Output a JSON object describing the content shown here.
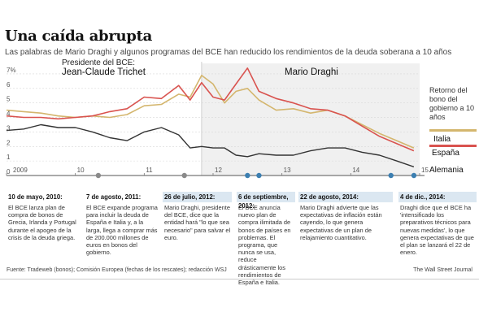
{
  "title": "Una caída abrupta",
  "subtitle": "Las palabras de Mario Draghi y algunos programas del BCE han reducido los rendimientos de la deuda soberana a 10 años",
  "presidents": {
    "label": "Presidente del BCE:",
    "trichet": "Jean-Claude Trichet",
    "draghi": "Mario Draghi"
  },
  "right_label": "Retorno del bono del gobierno a 10 años",
  "colors": {
    "italia": "#d4b66e",
    "espana": "#d9534f",
    "alemania": "#333333",
    "draghi_shade": "#f0f0f0",
    "accent_blue": "#3c7fb1",
    "marker_gray": "#8a8a8a"
  },
  "chart_data": {
    "type": "line",
    "ylim": [
      0,
      7.5
    ],
    "y_ticks": [
      "0",
      "1",
      "2",
      "3",
      "4",
      "5",
      "6",
      "7%"
    ],
    "x_ticks": [
      "2009",
      "10",
      "11",
      "12",
      "13",
      "14",
      "15"
    ],
    "x_range": [
      "2009-01",
      "2015-01"
    ],
    "draghi_start": "2011-11",
    "series": [
      {
        "name": "Italia",
        "x": [
          "2009-01",
          "2009-04",
          "2009-07",
          "2009-10",
          "2010-01",
          "2010-04",
          "2010-07",
          "2010-10",
          "2011-01",
          "2011-04",
          "2011-07",
          "2011-09",
          "2011-11",
          "2012-01",
          "2012-03",
          "2012-05",
          "2012-07",
          "2012-09",
          "2012-12",
          "2013-03",
          "2013-06",
          "2013-09",
          "2013-12",
          "2014-03",
          "2014-06",
          "2014-09",
          "2014-12"
        ],
        "values": [
          4.5,
          4.4,
          4.3,
          4.1,
          4.0,
          4.1,
          4.0,
          4.2,
          4.8,
          4.9,
          5.6,
          5.4,
          6.9,
          6.3,
          5.0,
          5.8,
          6.0,
          5.2,
          4.5,
          4.6,
          4.3,
          4.5,
          4.1,
          3.5,
          2.9,
          2.4,
          1.9
        ]
      },
      {
        "name": "España",
        "x": [
          "2009-01",
          "2009-04",
          "2009-07",
          "2009-10",
          "2010-01",
          "2010-04",
          "2010-07",
          "2010-10",
          "2011-01",
          "2011-04",
          "2011-07",
          "2011-09",
          "2011-11",
          "2012-01",
          "2012-03",
          "2012-05",
          "2012-07",
          "2012-09",
          "2012-12",
          "2013-03",
          "2013-06",
          "2013-09",
          "2013-12",
          "2014-03",
          "2014-06",
          "2014-09",
          "2014-12"
        ],
        "values": [
          4.1,
          4.0,
          4.0,
          3.9,
          4.0,
          4.1,
          4.4,
          4.6,
          5.4,
          5.3,
          6.2,
          5.2,
          6.4,
          5.4,
          5.2,
          6.3,
          7.4,
          5.8,
          5.3,
          5.0,
          4.6,
          4.5,
          4.1,
          3.4,
          2.7,
          2.2,
          1.7
        ]
      },
      {
        "name": "Alemania",
        "x": [
          "2009-01",
          "2009-04",
          "2009-07",
          "2009-10",
          "2010-01",
          "2010-04",
          "2010-07",
          "2010-10",
          "2011-01",
          "2011-04",
          "2011-07",
          "2011-09",
          "2011-11",
          "2012-01",
          "2012-03",
          "2012-05",
          "2012-07",
          "2012-09",
          "2012-12",
          "2013-03",
          "2013-06",
          "2013-09",
          "2013-12",
          "2014-03",
          "2014-06",
          "2014-09",
          "2014-12"
        ],
        "values": [
          3.1,
          3.2,
          3.5,
          3.3,
          3.3,
          3.0,
          2.6,
          2.4,
          3.0,
          3.3,
          2.8,
          1.9,
          2.0,
          1.9,
          1.9,
          1.4,
          1.3,
          1.5,
          1.4,
          1.4,
          1.7,
          1.9,
          1.9,
          1.6,
          1.4,
          1.0,
          0.6
        ]
      }
    ],
    "events": [
      {
        "date": "2010-05",
        "type": "program"
      },
      {
        "date": "2011-08",
        "type": "program"
      },
      {
        "date": "2012-07",
        "type": "draghi"
      },
      {
        "date": "2012-09",
        "type": "draghi"
      },
      {
        "date": "2014-08",
        "type": "draghi"
      },
      {
        "date": "2014-12",
        "type": "draghi"
      }
    ]
  },
  "annotations": [
    {
      "date": "10 de mayo, 2010:",
      "text": "El BCE lanza plan de compra de bonos de Grecia, Irlanda y Portugal durante el apogeo de la crisis de la deuda griega.",
      "draghi": false
    },
    {
      "date": "7 de agosto, 2011:",
      "text": "El BCE expande programa para incluir la deuda de España e Italia y, a la larga, llega a comprar más de 200.000 millones de euros en bonos del gobierno.",
      "draghi": false
    },
    {
      "date": "26 de julio, 2012:",
      "text": "Mario Draghi, presidente del BCE, dice que la entidad hará \"lo que sea necesario\" para salvar el euro.",
      "draghi": true
    },
    {
      "date": "6 de septiembre, 2012:",
      "text": "El BCE anuncia nuevo plan de compra ilimitada de bonos de países en problemas. El programa, que nunca se usa, reduce drásticamente los rendimientos de España e Italia.",
      "draghi": true
    },
    {
      "date": "22 de agosto, 2014:",
      "text": "Mario Draghi advierte que las expectativas de inflación están cayendo, lo que genera expectativas de un plan de relajamiento cuantitativo.",
      "draghi": true
    },
    {
      "date": "4 de dic., 2014:",
      "text": "Draghi dice que el BCE ha 'intensificado los preparativos técnicos para nuevas medidas', lo que genera expectativas de que el plan se lanzará el 22 de enero.",
      "draghi": true
    }
  ],
  "footer": {
    "source": "Fuente: Tradeweb (bonos); Comisión Europea (fechas de los rescates); redacción WSJ",
    "credit": "The Wall Street Journal"
  }
}
